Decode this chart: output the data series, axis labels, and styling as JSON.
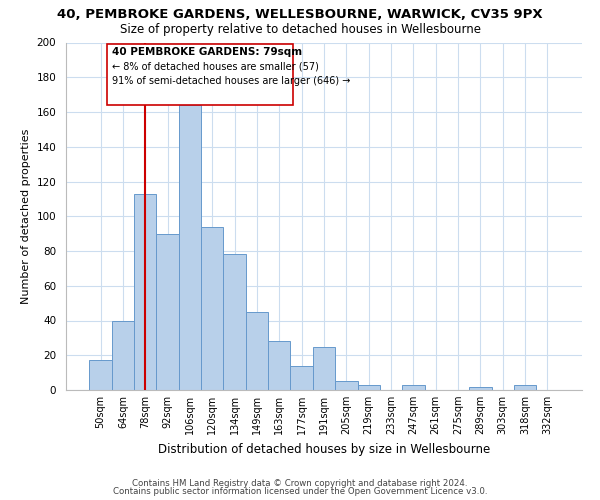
{
  "title": "40, PEMBROKE GARDENS, WELLESBOURNE, WARWICK, CV35 9PX",
  "subtitle": "Size of property relative to detached houses in Wellesbourne",
  "xlabel": "Distribution of detached houses by size in Wellesbourne",
  "ylabel": "Number of detached properties",
  "bar_labels": [
    "50sqm",
    "64sqm",
    "78sqm",
    "92sqm",
    "106sqm",
    "120sqm",
    "134sqm",
    "149sqm",
    "163sqm",
    "177sqm",
    "191sqm",
    "205sqm",
    "219sqm",
    "233sqm",
    "247sqm",
    "261sqm",
    "275sqm",
    "289sqm",
    "303sqm",
    "318sqm",
    "332sqm"
  ],
  "bar_values": [
    17,
    40,
    113,
    90,
    164,
    94,
    78,
    45,
    28,
    14,
    25,
    5,
    3,
    0,
    3,
    0,
    0,
    2,
    0,
    3,
    0
  ],
  "bar_color": "#b8d0ea",
  "bar_edge_color": "#6699cc",
  "vline_x_idx": 2,
  "vline_color": "#cc0000",
  "ylim": [
    0,
    200
  ],
  "yticks": [
    0,
    20,
    40,
    60,
    80,
    100,
    120,
    140,
    160,
    180,
    200
  ],
  "annotation_title": "40 PEMBROKE GARDENS: 79sqm",
  "annotation_line1": "← 8% of detached houses are smaller (57)",
  "annotation_line2": "91% of semi-detached houses are larger (646) →",
  "footer1": "Contains HM Land Registry data © Crown copyright and database right 2024.",
  "footer2": "Contains public sector information licensed under the Open Government Licence v3.0.",
  "background_color": "#ffffff",
  "grid_color": "#ccddef"
}
